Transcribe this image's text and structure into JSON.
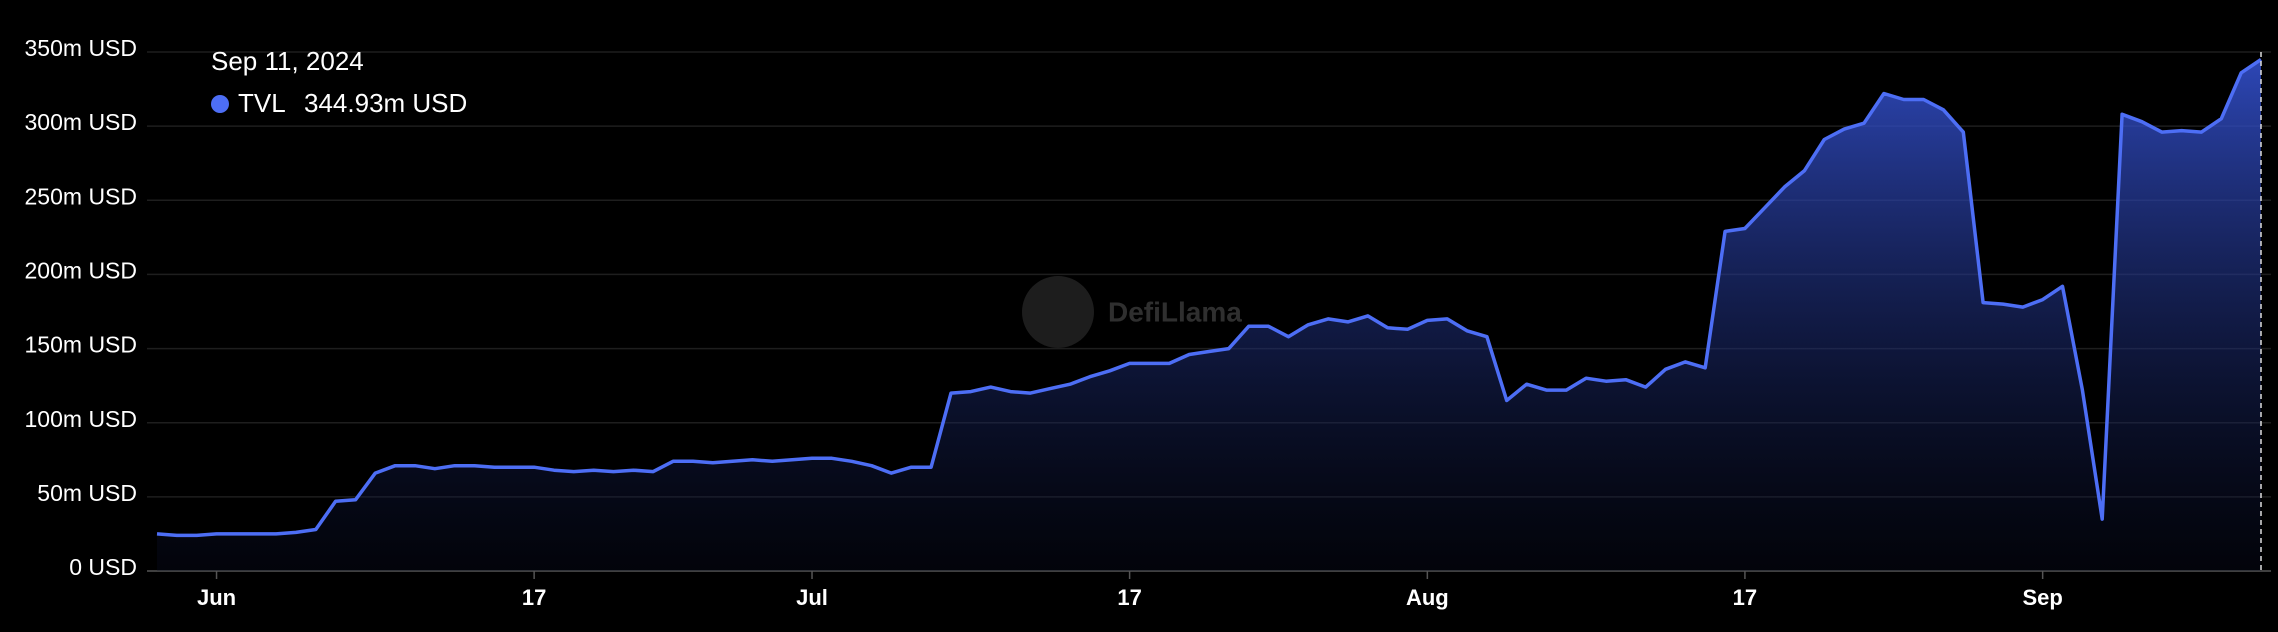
{
  "chart_data": {
    "type": "area",
    "watermark": "DefiLlama",
    "tooltip": {
      "date": "Sep 11, 2024",
      "label": "344.93m USD"
    },
    "categories": [
      null,
      null,
      null,
      "Jun",
      null,
      null,
      null,
      null,
      null,
      null,
      null,
      null,
      null,
      null,
      null,
      null,
      null,
      null,
      null,
      "17",
      null,
      null,
      null,
      null,
      null,
      null,
      null,
      null,
      null,
      null,
      null,
      null,
      null,
      "Jul",
      null,
      null,
      null,
      null,
      null,
      null,
      null,
      null,
      null,
      null,
      null,
      null,
      null,
      null,
      null,
      "17",
      null,
      null,
      null,
      null,
      null,
      null,
      null,
      null,
      null,
      null,
      null,
      null,
      null,
      null,
      "Aug",
      null,
      null,
      null,
      null,
      null,
      null,
      null,
      null,
      null,
      null,
      null,
      null,
      null,
      null,
      null,
      "17",
      null,
      null,
      null,
      null,
      null,
      null,
      null,
      null,
      null,
      null,
      null,
      null,
      null,
      null,
      "Sep",
      null,
      null,
      null,
      null,
      null,
      null,
      null,
      null,
      null,
      null,
      null
    ],
    "series": [
      {
        "name": "TVL",
        "color": "#4d6ef5",
        "values": [
          25,
          24,
          24,
          25,
          25,
          25,
          25,
          26,
          28,
          47,
          48,
          66,
          71,
          71,
          69,
          71,
          71,
          70,
          70,
          70,
          68,
          67,
          68,
          67,
          68,
          67,
          74,
          74,
          73,
          74,
          75,
          74,
          75,
          76,
          76,
          74,
          71,
          66,
          70,
          70,
          120,
          121,
          124,
          121,
          120,
          123,
          126,
          131,
          135,
          140,
          140,
          140,
          146,
          148,
          150,
          165,
          165,
          158,
          166,
          170,
          168,
          172,
          164,
          163,
          169,
          170,
          162,
          158,
          115,
          126,
          122,
          122,
          130,
          128,
          129,
          124,
          136,
          141,
          137,
          229,
          231,
          245,
          259,
          270,
          291,
          298,
          302,
          322,
          318,
          318,
          311,
          296,
          181,
          180,
          178,
          183,
          192,
          122,
          35,
          308,
          303,
          296,
          297,
          296,
          305,
          336,
          344.93
        ]
      }
    ],
    "ylim": [
      0,
      350
    ],
    "yticks": [
      {
        "value": 0,
        "label": "0 USD"
      },
      {
        "value": 50,
        "label": "50m USD"
      },
      {
        "value": 100,
        "label": "100m USD"
      },
      {
        "value": 150,
        "label": "150m USD"
      },
      {
        "value": 200,
        "label": "200m USD"
      },
      {
        "value": 250,
        "label": "250m USD"
      },
      {
        "value": 300,
        "label": "300m USD"
      },
      {
        "value": 350,
        "label": "350m USD"
      }
    ],
    "grid": true
  }
}
